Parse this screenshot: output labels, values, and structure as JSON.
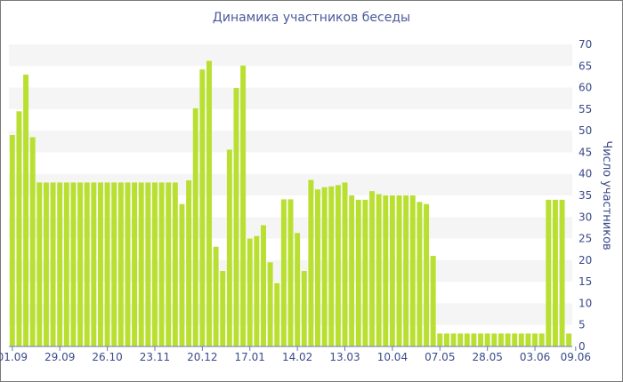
{
  "chart_data": {
    "type": "bar",
    "title": "Динамика участников беседы",
    "ylabel": "Число участников",
    "xlabel": "",
    "ylim": [
      0,
      70
    ],
    "y_ticks": [
      0,
      5,
      10,
      15,
      20,
      25,
      30,
      35,
      40,
      45,
      50,
      55,
      60,
      65,
      70
    ],
    "x_tick_labels": [
      "01.09",
      "29.09",
      "26.10",
      "23.11",
      "20.12",
      "17.01",
      "14.02",
      "13.03",
      "10.04",
      "07.05",
      "28.05",
      "03.06",
      "09.06"
    ],
    "x_tick_positions": [
      0,
      7,
      14,
      21,
      28,
      35,
      42,
      49,
      56,
      63,
      70,
      77,
      83
    ],
    "bar_color": "#b9e031",
    "grid_band_color": "#f5f5f5",
    "values": [
      49,
      54.5,
      63,
      48.5,
      38,
      38,
      38,
      38,
      38,
      38,
      38,
      38,
      38,
      38,
      38,
      38,
      38,
      38,
      38,
      38,
      38,
      38,
      38,
      38,
      38,
      33,
      38.5,
      55.2,
      64.2,
      66.2,
      23.1,
      17.5,
      45.6,
      59.9,
      65.1,
      25,
      25.6,
      28.1,
      19.5,
      14.7,
      34.1,
      34.1,
      26.3,
      17.5,
      38.6,
      36.4,
      36.9,
      37.1,
      37.4,
      38,
      35,
      34,
      34,
      36,
      35.3,
      35,
      35,
      35,
      35,
      35,
      33.5,
      33,
      21,
      3,
      3,
      3,
      3,
      3,
      3,
      3,
      3,
      3,
      3,
      3,
      3,
      3,
      3,
      3,
      3,
      34,
      34,
      34,
      3
    ]
  }
}
